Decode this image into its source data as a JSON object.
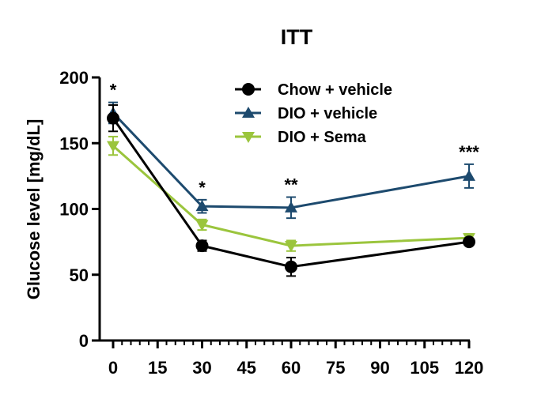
{
  "chart_data": {
    "type": "line",
    "title": "ITT",
    "xlabel": "",
    "ylabel": "Glucose level [mg/dL]",
    "xlim": [
      0,
      120
    ],
    "ylim": [
      0,
      200
    ],
    "xticks": [
      0,
      15,
      30,
      45,
      60,
      75,
      90,
      105,
      120
    ],
    "yticks": [
      0,
      50,
      100,
      150,
      200
    ],
    "x": [
      0,
      30,
      60,
      120
    ],
    "legend_position": "top-center",
    "grid": false,
    "series": [
      {
        "name": "Chow + vehicle",
        "marker": "circle",
        "color": "#000000",
        "values": [
          169,
          72,
          56,
          75
        ],
        "error": [
          10,
          4,
          7,
          2
        ]
      },
      {
        "name": "DIO + vehicle",
        "marker": "triangle-up",
        "color": "#1d4a6e",
        "values": [
          173,
          102,
          101,
          125
        ],
        "error": [
          8,
          5,
          8,
          9
        ]
      },
      {
        "name": "DIO + Sema",
        "marker": "triangle-down",
        "color": "#9bc53d",
        "values": [
          148,
          88,
          72,
          78
        ],
        "error": [
          7,
          4,
          4,
          3
        ]
      }
    ],
    "annotations": [
      {
        "x": 0,
        "text": "*"
      },
      {
        "x": 30,
        "text": "*"
      },
      {
        "x": 60,
        "text": "**"
      },
      {
        "x": 120,
        "text": "***"
      }
    ]
  }
}
